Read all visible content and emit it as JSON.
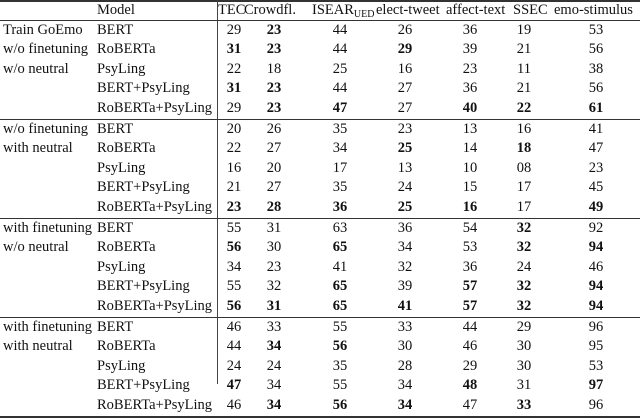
{
  "table": {
    "header": {
      "model": "Model",
      "columns": [
        "TEC",
        "Crowdfl.",
        "ISEAR",
        "elect-tweet",
        "affect-text",
        "SSEC",
        "emo-stimulus"
      ],
      "isear_subscript": "UED"
    },
    "groups": [
      {
        "labels": [
          "Train GoEmo",
          "w/o finetuning",
          "w/o neutral"
        ],
        "rows": [
          {
            "model": "BERT",
            "values": [
              "29",
              "23",
              "44",
              "26",
              "36",
              "19",
              "53"
            ],
            "bold": [
              1
            ]
          },
          {
            "model": "RoBERTa",
            "values": [
              "31",
              "23",
              "44",
              "29",
              "39",
              "21",
              "56"
            ],
            "bold": [
              0,
              1,
              3
            ]
          },
          {
            "model": "PsyLing",
            "values": [
              "22",
              "18",
              "25",
              "16",
              "23",
              "11",
              "38"
            ],
            "bold": []
          },
          {
            "model": "BERT+PsyLing",
            "values": [
              "31",
              "23",
              "44",
              "27",
              "36",
              "21",
              "56"
            ],
            "bold": [
              0,
              1
            ]
          },
          {
            "model": "RoBERTa+PsyLing",
            "values": [
              "29",
              "23",
              "47",
              "27",
              "40",
              "22",
              "61"
            ],
            "bold": [
              1,
              2,
              4,
              5,
              6
            ]
          }
        ]
      },
      {
        "labels": [
          "w/o finetuning",
          "with neutral"
        ],
        "rows": [
          {
            "model": "BERT",
            "values": [
              "20",
              "26",
              "35",
              "23",
              "13",
              "16",
              "41"
            ],
            "bold": []
          },
          {
            "model": "RoBERTa",
            "values": [
              "22",
              "27",
              "34",
              "25",
              "14",
              "18",
              "47"
            ],
            "bold": [
              3,
              5
            ]
          },
          {
            "model": "PsyLing",
            "values": [
              "16",
              "20",
              "17",
              "13",
              "10",
              "08",
              "23"
            ],
            "bold": []
          },
          {
            "model": "BERT+PsyLing",
            "values": [
              "21",
              "27",
              "35",
              "24",
              "15",
              "17",
              "45"
            ],
            "bold": []
          },
          {
            "model": "RoBERTa+PsyLing",
            "values": [
              "23",
              "28",
              "36",
              "25",
              "16",
              "17",
              "49"
            ],
            "bold": [
              0,
              1,
              2,
              3,
              4,
              6
            ]
          }
        ]
      },
      {
        "labels": [
          "with finetuning",
          "w/o neutral"
        ],
        "rows": [
          {
            "model": "BERT",
            "values": [
              "55",
              "31",
              "63",
              "36",
              "54",
              "32",
              "92"
            ],
            "bold": [
              5
            ]
          },
          {
            "model": "RoBERTa",
            "values": [
              "56",
              "30",
              "65",
              "34",
              "53",
              "32",
              "94"
            ],
            "bold": [
              0,
              2,
              5,
              6
            ]
          },
          {
            "model": "PsyLing",
            "values": [
              "34",
              "23",
              "41",
              "32",
              "36",
              "24",
              "46"
            ],
            "bold": []
          },
          {
            "model": "BERT+PsyLing",
            "values": [
              "55",
              "32",
              "65",
              "39",
              "57",
              "32",
              "94"
            ],
            "bold": [
              2,
              4,
              5,
              6
            ]
          },
          {
            "model": "RoBERTa+PsyLing",
            "values": [
              "56",
              "31",
              "65",
              "41",
              "57",
              "32",
              "94"
            ],
            "bold": [
              0,
              1,
              2,
              3,
              4,
              5,
              6
            ]
          }
        ]
      },
      {
        "labels": [
          "with finetuning",
          "with neutral"
        ],
        "rows": [
          {
            "model": "BERT",
            "values": [
              "46",
              "33",
              "55",
              "33",
              "44",
              "29",
              "96"
            ],
            "bold": []
          },
          {
            "model": "RoBERTa",
            "values": [
              "44",
              "34",
              "56",
              "30",
              "46",
              "30",
              "95"
            ],
            "bold": [
              1,
              2
            ]
          },
          {
            "model": "PsyLing",
            "values": [
              "24",
              "24",
              "35",
              "28",
              "29",
              "30",
              "53"
            ],
            "bold": []
          },
          {
            "model": "BERT+PsyLing",
            "values": [
              "47",
              "34",
              "55",
              "34",
              "48",
              "31",
              "97"
            ],
            "bold": [
              0,
              4,
              6
            ]
          },
          {
            "model": "RoBERTa+PsyLing",
            "values": [
              "46",
              "34",
              "56",
              "34",
              "47",
              "33",
              "96"
            ],
            "bold": [
              1,
              2,
              3,
              5
            ]
          }
        ]
      }
    ]
  }
}
